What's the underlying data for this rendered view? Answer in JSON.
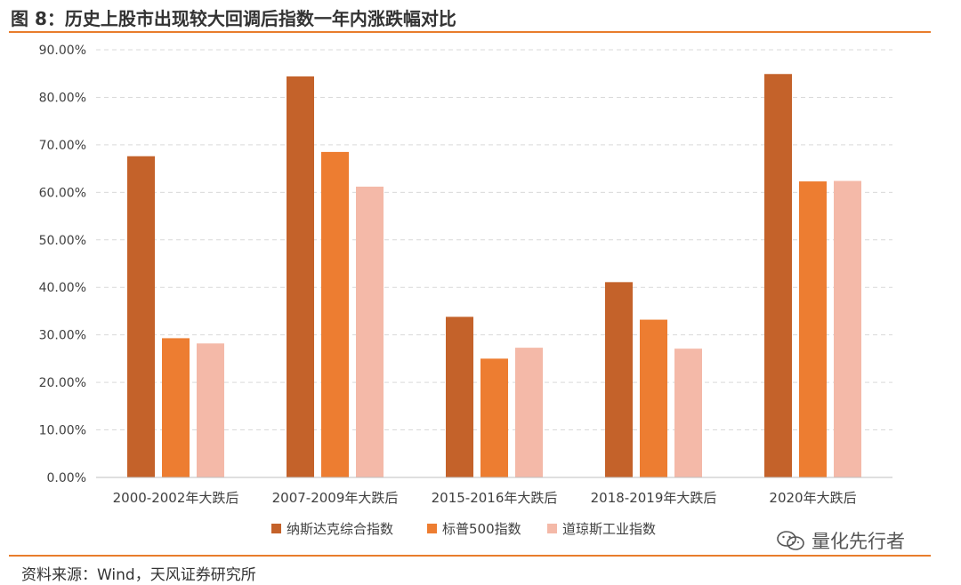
{
  "header": {
    "title": "图 8：历史上股市出现较大回调后指数一年内涨跌幅对比"
  },
  "footer": {
    "source": "资料来源：Wind，天风证券研究所",
    "watermark_text": "量化先行者",
    "watermark_icon": "wechat-icon"
  },
  "chart_data": {
    "type": "bar",
    "categories": [
      "2000-2002年大跌后",
      "2007-2009年大跌后",
      "2015-2016年大跌后",
      "2018-2019年大跌后",
      "2020年大跌后"
    ],
    "series": [
      {
        "name": "纳斯达克综合指数",
        "color": "#c4622a",
        "values": [
          67.6,
          84.4,
          33.8,
          41.1,
          84.9
        ]
      },
      {
        "name": "标普500指数",
        "color": "#ed7d31",
        "values": [
          29.3,
          68.5,
          25.0,
          33.2,
          62.3
        ]
      },
      {
        "name": "道琼斯工业指数",
        "color": "#f4b9a8",
        "values": [
          28.2,
          61.2,
          27.3,
          27.1,
          62.4
        ]
      }
    ],
    "ylim": [
      0,
      90
    ],
    "yticks": [
      "0.00%",
      "10.00%",
      "20.00%",
      "30.00%",
      "40.00%",
      "50.00%",
      "60.00%",
      "70.00%",
      "80.00%",
      "90.00%"
    ],
    "xlabel": "",
    "ylabel": "",
    "grid": true,
    "legend_position": "bottom"
  }
}
